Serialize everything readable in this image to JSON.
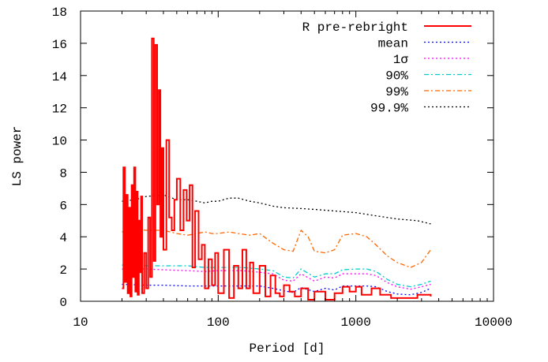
{
  "chart_data": {
    "type": "line",
    "title": "",
    "xlabel": "Period [d]",
    "ylabel": "LS power",
    "xscale": "log",
    "xlim": [
      10,
      10000
    ],
    "ylim": [
      0,
      18
    ],
    "xticks": [
      10,
      100,
      1000,
      10000
    ],
    "xtick_labels": [
      "10",
      "100",
      "1000",
      "10000"
    ],
    "yticks": [
      0,
      2,
      4,
      6,
      8,
      10,
      12,
      14,
      16,
      18
    ],
    "ytick_labels": [
      "0",
      "2",
      "4",
      "6",
      "8",
      "10",
      "12",
      "14",
      "16",
      "18"
    ],
    "grid": false,
    "legend_position": "top-right",
    "series": [
      {
        "name": "R pre-rebright",
        "color": "#ff0000",
        "style": "solid",
        "x": [
          20,
          20.5,
          21,
          21.5,
          22,
          22.5,
          23,
          23.5,
          24,
          24.5,
          25,
          25.5,
          26,
          26.5,
          27,
          27.5,
          28,
          29,
          30,
          31,
          32,
          33,
          34,
          35,
          36,
          37,
          38,
          39,
          40,
          42,
          44,
          46,
          48,
          50,
          53,
          56,
          59,
          62,
          65,
          68,
          72,
          76,
          80,
          85,
          90,
          95,
          100,
          110,
          120,
          130,
          140,
          150,
          160,
          170,
          180,
          200,
          220,
          240,
          260,
          280,
          300,
          330,
          360,
          400,
          450,
          500,
          600,
          700,
          800,
          900,
          1000,
          1100,
          1300,
          1500,
          1800,
          2200,
          2800,
          3500
        ],
        "y": [
          0.8,
          8.3,
          1.2,
          6.6,
          0.5,
          5.8,
          0.3,
          7.2,
          1.5,
          8.3,
          0.6,
          6.8,
          0.4,
          5.0,
          1.8,
          6.5,
          0.5,
          3.0,
          0.8,
          5.2,
          1.5,
          16.3,
          2.5,
          15.9,
          6.0,
          13.1,
          4.0,
          9.5,
          3.2,
          10.0,
          5.2,
          4.4,
          6.3,
          7.6,
          4.4,
          6.9,
          5.0,
          7.2,
          2.1,
          5.6,
          2.6,
          3.5,
          0.8,
          2.6,
          1.0,
          3.0,
          0.5,
          3.2,
          0.2,
          2.2,
          0.8,
          3.2,
          0.8,
          2.4,
          0.5,
          2.2,
          0.3,
          1.6,
          0.5,
          0.3,
          1.0,
          0.6,
          0.3,
          0.8,
          0.1,
          0.6,
          0.1,
          0.5,
          0.9,
          0.6,
          0.9,
          0.4,
          0.8,
          0.4,
          0.2,
          0.2,
          0.4,
          0.3
        ]
      },
      {
        "name": "mean",
        "color": "#0000ff",
        "style": "dotted",
        "x": [
          20,
          30,
          40,
          60,
          80,
          100,
          150,
          200,
          250,
          300,
          350,
          400,
          500,
          600,
          700,
          800,
          1000,
          1200,
          1400,
          1700,
          2000,
          2500,
          3000,
          3500
        ],
        "y": [
          1.05,
          1.0,
          1.0,
          0.95,
          0.95,
          0.95,
          0.95,
          0.95,
          0.8,
          0.65,
          0.55,
          0.85,
          0.6,
          0.8,
          0.7,
          0.95,
          0.95,
          0.95,
          0.9,
          0.6,
          0.45,
          0.4,
          0.55,
          0.8
        ]
      },
      {
        "name": "1σ",
        "color": "#ff00ff",
        "style": "dotted",
        "x": [
          20,
          30,
          40,
          60,
          80,
          100,
          150,
          200,
          250,
          300,
          350,
          400,
          500,
          600,
          700,
          800,
          1000,
          1200,
          1400,
          1700,
          2000,
          2500,
          3000,
          3500
        ],
        "y": [
          2.0,
          2.0,
          1.95,
          1.9,
          1.85,
          1.9,
          1.9,
          1.8,
          1.7,
          1.3,
          1.25,
          1.7,
          1.25,
          1.5,
          1.45,
          1.7,
          1.7,
          1.7,
          1.6,
          1.15,
          0.9,
          0.75,
          0.9,
          1.05
        ]
      },
      {
        "name": "90%",
        "color": "#00cccc",
        "style": "dashdot",
        "x": [
          20,
          30,
          40,
          60,
          80,
          100,
          150,
          200,
          250,
          300,
          350,
          400,
          500,
          600,
          700,
          800,
          1000,
          1200,
          1400,
          1700,
          2000,
          2500,
          3000,
          3500
        ],
        "y": [
          2.25,
          2.2,
          2.2,
          2.2,
          2.1,
          2.1,
          2.1,
          2.0,
          1.9,
          1.5,
          1.45,
          2.0,
          1.5,
          1.7,
          1.7,
          1.95,
          2.0,
          2.0,
          1.85,
          1.35,
          1.05,
          0.9,
          1.05,
          1.25
        ]
      },
      {
        "name": "99%",
        "color": "#ff6600",
        "style": "dashdot",
        "x": [
          20,
          25,
          30,
          40,
          50,
          60,
          70,
          80,
          90,
          100,
          120,
          140,
          170,
          200,
          250,
          300,
          350,
          400,
          450,
          500,
          600,
          700,
          800,
          1000,
          1200,
          1400,
          1700,
          2000,
          2500,
          3000,
          3500
        ],
        "y": [
          4.3,
          4.5,
          4.4,
          4.4,
          4.2,
          4.1,
          4.2,
          4.3,
          4.2,
          4.2,
          4.3,
          4.2,
          4.1,
          4.2,
          3.6,
          3.2,
          3.1,
          4.4,
          4.0,
          3.1,
          3.0,
          3.2,
          4.1,
          4.2,
          4.0,
          3.5,
          2.8,
          2.4,
          2.1,
          2.4,
          3.2
        ]
      },
      {
        "name": "99.9%",
        "color": "#000000",
        "style": "dotted",
        "x": [
          20,
          25,
          30,
          40,
          50,
          60,
          70,
          80,
          90,
          100,
          120,
          140,
          170,
          200,
          250,
          300,
          400,
          500,
          700,
          1000,
          1400,
          2000,
          2800,
          3500
        ],
        "y": [
          6.2,
          6.3,
          6.5,
          6.6,
          6.3,
          6.3,
          6.2,
          6.1,
          6.2,
          6.2,
          6.4,
          6.4,
          6.2,
          6.1,
          5.9,
          5.8,
          5.75,
          5.7,
          5.6,
          5.5,
          5.3,
          5.1,
          5.0,
          4.8
        ]
      }
    ]
  }
}
